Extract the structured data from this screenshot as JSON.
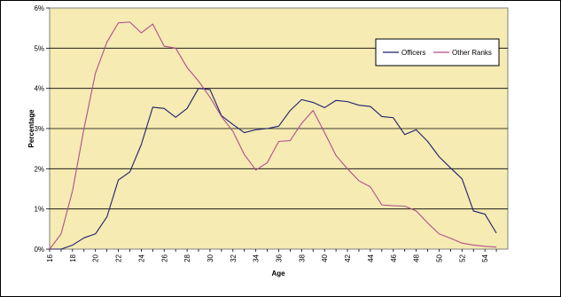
{
  "chart_data": {
    "type": "line",
    "xlabel": "Age",
    "ylabel": "Percentage",
    "x": [
      16,
      17,
      18,
      19,
      20,
      21,
      22,
      23,
      24,
      25,
      26,
      27,
      28,
      29,
      30,
      31,
      32,
      33,
      34,
      35,
      36,
      37,
      38,
      39,
      40,
      41,
      42,
      43,
      44,
      45,
      46,
      47,
      48,
      49,
      50,
      51,
      52,
      53,
      54,
      55
    ],
    "x_tick_labels": [
      "16",
      "18",
      "20",
      "22",
      "24",
      "26",
      "28",
      "30",
      "32",
      "34",
      "36",
      "38",
      "40",
      "42",
      "44",
      "46",
      "48",
      "50",
      "52",
      "54"
    ],
    "y_tick_labels": [
      "0%",
      "1%",
      "2%",
      "3%",
      "4%",
      "5%",
      "6%"
    ],
    "ylim": [
      0,
      6
    ],
    "grid": "horizontal",
    "legend_position": "right",
    "plot_background": "#f5ebb3",
    "series": [
      {
        "name": "Officers",
        "color": "#1f1f6e",
        "values": [
          0,
          0,
          0.1,
          0.28,
          0.38,
          0.8,
          1.72,
          1.92,
          2.6,
          3.53,
          3.5,
          3.28,
          3.5,
          4.0,
          3.97,
          3.32,
          3.1,
          2.9,
          2.97,
          3.0,
          3.06,
          3.45,
          3.72,
          3.65,
          3.52,
          3.7,
          3.67,
          3.58,
          3.55,
          3.3,
          3.27,
          2.85,
          2.97,
          2.68,
          2.3,
          2.02,
          1.75,
          0.95,
          0.87,
          0.4
        ]
      },
      {
        "name": "Other Ranks",
        "color": "#b0508c",
        "values": [
          0,
          0.38,
          1.45,
          3.0,
          4.38,
          5.15,
          5.63,
          5.65,
          5.38,
          5.6,
          5.05,
          5.0,
          4.52,
          4.18,
          3.78,
          3.3,
          2.93,
          2.35,
          1.97,
          2.15,
          2.68,
          2.7,
          3.13,
          3.45,
          2.9,
          2.33,
          2.0,
          1.7,
          1.55,
          1.1,
          1.08,
          1.07,
          0.95,
          0.65,
          0.38,
          0.27,
          0.15,
          0.1,
          0.07,
          0.05
        ]
      }
    ]
  }
}
